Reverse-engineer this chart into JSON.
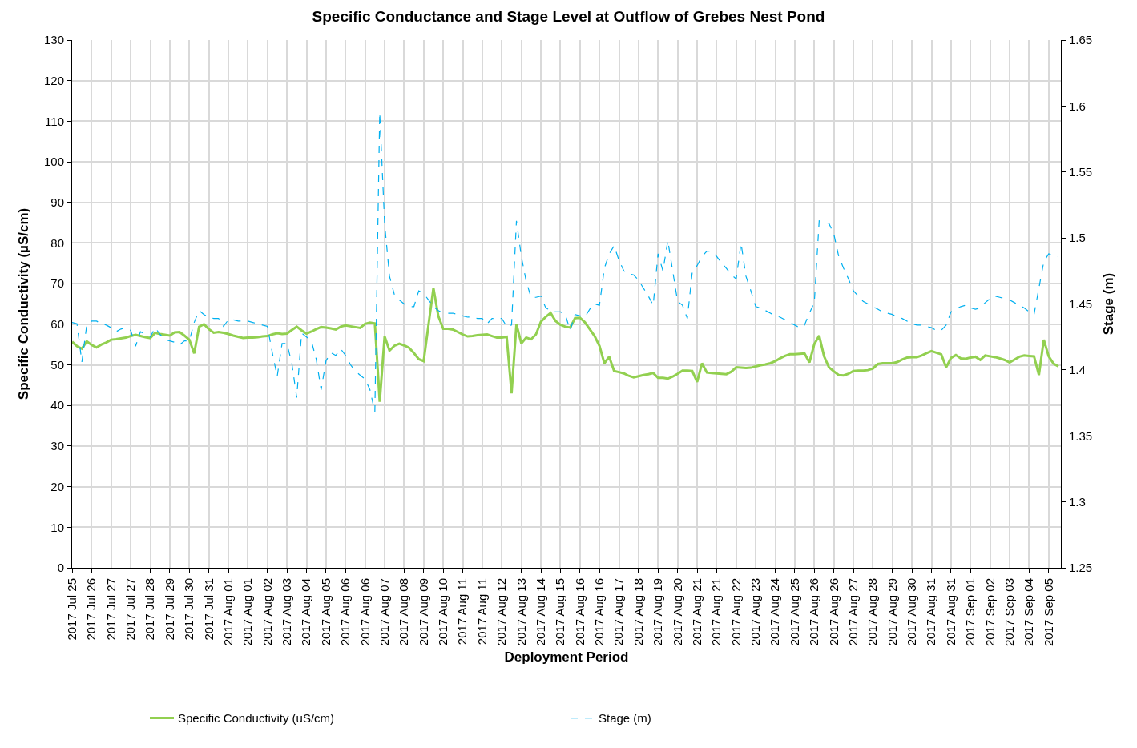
{
  "chart_data": {
    "type": "line",
    "title": "Specific Conductance and Stage Level at Outflow of Grebes Nest Pond",
    "xlabel": "Deployment Period",
    "ylabel": "Specific Conductivity (µS/cm)",
    "y2label": "Stage (m)",
    "categories": [
      "2017 Jul 25",
      null,
      null,
      null,
      "2017 Jul 26",
      null,
      null,
      null,
      "2017 Jul 27",
      null,
      null,
      null,
      "2017 Jul 27",
      null,
      null,
      null,
      "2017 Jul 28",
      null,
      null,
      null,
      "2017 Jul 29",
      null,
      null,
      null,
      "2017 Jul 30",
      null,
      null,
      null,
      "2017 Jul 31",
      null,
      null,
      null,
      "2017 Aug 01",
      null,
      null,
      null,
      "2017 Aug 01",
      null,
      null,
      null,
      "2017 Aug 02",
      null,
      null,
      null,
      "2017 Aug 03",
      null,
      null,
      null,
      "2017 Aug 04",
      null,
      null,
      null,
      "2017 Aug 05",
      null,
      null,
      null,
      "2017 Aug 06",
      null,
      null,
      null,
      "2017 Aug 06",
      null,
      null,
      null,
      "2017 Aug 07",
      null,
      null,
      null,
      "2017 Aug 08",
      null,
      null,
      null,
      "2017 Aug 09",
      null,
      null,
      null,
      "2017 Aug 10",
      null,
      null,
      null,
      "2017 Aug 11",
      null,
      null,
      null,
      "2017 Aug 11",
      null,
      null,
      null,
      "2017 Aug 12",
      null,
      null,
      null,
      "2017 Aug 13",
      null,
      null,
      null,
      "2017 Aug 14",
      null,
      null,
      null,
      "2017 Aug 15",
      null,
      null,
      null,
      "2017 Aug 16",
      null,
      null,
      null,
      "2017 Aug 16",
      null,
      null,
      null,
      "2017 Aug 17",
      null,
      null,
      null,
      "2017 Aug 18",
      null,
      null,
      null,
      "2017 Aug 19",
      null,
      null,
      null,
      "2017 Aug 20",
      null,
      null,
      null,
      "2017 Aug 21",
      null,
      null,
      null,
      "2017 Aug 21",
      null,
      null,
      null,
      "2017 Aug 22",
      null,
      null,
      null,
      "2017 Aug 23",
      null,
      null,
      null,
      "2017 Aug 24",
      null,
      null,
      null,
      "2017 Aug 25",
      null,
      null,
      null,
      "2017 Aug 26",
      null,
      null,
      null,
      "2017 Aug 26",
      null,
      null,
      null,
      "2017 Aug 27",
      null,
      null,
      null,
      "2017 Aug 28",
      null,
      null,
      null,
      "2017 Aug 29",
      null,
      null,
      null,
      "2017 Aug 30",
      null,
      null,
      null,
      "2017 Aug 31",
      null,
      null,
      null,
      "2017 Aug 31",
      null,
      null,
      null,
      "2017 Sep 01",
      null,
      null,
      null,
      "2017 Sep 02",
      null,
      null,
      null,
      "2017 Sep 03",
      null,
      null,
      null,
      "2017 Sep 04",
      null,
      null,
      null,
      "2017 Sep 05",
      null,
      null
    ],
    "ylim": [
      0,
      130
    ],
    "yticks": [
      0,
      10,
      20,
      30,
      40,
      50,
      60,
      70,
      80,
      90,
      100,
      110,
      120,
      130
    ],
    "y2lim": [
      1.25,
      1.65
    ],
    "y2ticks": [
      1.25,
      1.3,
      1.35,
      1.4,
      1.45,
      1.5,
      1.55,
      1.6,
      1.65
    ],
    "grid": true,
    "legend": "bottom",
    "marker": "none",
    "series": [
      {
        "name": "Specific Conductivity (uS/cm)",
        "color": "#92d050",
        "line_style": "solid",
        "values": [
          55.7,
          54.6,
          54.0,
          55.8,
          54.9,
          54.3,
          55.0,
          55.5,
          56.2,
          56.3,
          56.5,
          56.7,
          57.1,
          57.4,
          57.1,
          56.8,
          56.6,
          57.9,
          57.6,
          57.4,
          57.2,
          58.0,
          58.1,
          57.2,
          56.2,
          52.8,
          59.4,
          60.0,
          58.8,
          57.9,
          58.1,
          57.9,
          57.6,
          57.2,
          56.9,
          56.6,
          56.7,
          56.7,
          56.8,
          57.0,
          57.1,
          57.5,
          57.8,
          57.6,
          57.7,
          58.6,
          59.4,
          58.5,
          57.7,
          58.2,
          58.8,
          59.3,
          59.2,
          59.0,
          58.7,
          59.4,
          59.7,
          59.5,
          59.3,
          59.1,
          60.1,
          60.4,
          60.2,
          40.9,
          57.0,
          53.5,
          54.7,
          55.2,
          54.8,
          54.2,
          52.9,
          51.4,
          50.9,
          60.0,
          68.9,
          62.0,
          58.9,
          58.9,
          58.7,
          58.1,
          57.5,
          57.0,
          57.1,
          57.3,
          57.4,
          57.5,
          57.1,
          56.7,
          56.7,
          56.9,
          43.0,
          60.0,
          55.3,
          56.7,
          56.3,
          57.5,
          60.6,
          61.8,
          62.8,
          60.8,
          59.9,
          59.4,
          59.2,
          61.5,
          61.6,
          60.5,
          58.8,
          57.1,
          54.7,
          50.4,
          52.0,
          48.5,
          48.2,
          47.9,
          47.3,
          46.9,
          47.2,
          47.5,
          47.7,
          48.0,
          46.8,
          46.8,
          46.6,
          47.1,
          47.8,
          48.6,
          48.6,
          48.5,
          45.8,
          50.4,
          48.1,
          48.0,
          47.9,
          47.8,
          47.7,
          48.3,
          49.4,
          49.3,
          49.2,
          49.3,
          49.6,
          49.9,
          50.1,
          50.4,
          50.9,
          51.6,
          52.2,
          52.6,
          52.6,
          52.7,
          52.8,
          50.6,
          55.1,
          57.2,
          52.1,
          49.4,
          48.4,
          47.5,
          47.4,
          47.8,
          48.5,
          48.6,
          48.6,
          48.7,
          49.1,
          50.2,
          50.4,
          50.4,
          50.4,
          50.7,
          51.3,
          51.8,
          51.9,
          51.9,
          52.3,
          52.9,
          53.4,
          53.0,
          52.6,
          49.4,
          51.7,
          52.4,
          51.6,
          51.5,
          51.8,
          52.0,
          51.2,
          52.3,
          52.1,
          51.9,
          51.6,
          51.2,
          50.6,
          51.3,
          52.0,
          52.3,
          52.2,
          52.1,
          47.5,
          56.2,
          52.1,
          50.3,
          49.6
        ]
      },
      {
        "name": "Stage (m)",
        "color": "#00b0f0",
        "line_style": "dashed",
        "axis": "y2",
        "values": [
          1.436,
          1.435,
          1.406,
          1.434,
          1.437,
          1.437,
          1.435,
          1.434,
          1.432,
          1.429,
          1.431,
          1.432,
          1.43,
          1.418,
          1.429,
          1.427,
          1.425,
          1.432,
          1.427,
          1.423,
          1.422,
          1.421,
          1.419,
          1.422,
          1.422,
          1.436,
          1.445,
          1.442,
          1.44,
          1.439,
          1.439,
          1.433,
          1.438,
          1.438,
          1.437,
          1.437,
          1.437,
          1.436,
          1.435,
          1.434,
          1.433,
          1.413,
          1.395,
          1.42,
          1.42,
          1.405,
          1.379,
          1.428,
          1.425,
          1.422,
          1.408,
          1.385,
          1.407,
          1.413,
          1.411,
          1.416,
          1.411,
          1.404,
          1.399,
          1.396,
          1.393,
          1.385,
          1.368,
          1.595,
          1.511,
          1.471,
          1.457,
          1.453,
          1.45,
          1.448,
          1.448,
          1.46,
          1.458,
          1.453,
          1.448,
          1.445,
          1.443,
          1.443,
          1.443,
          1.442,
          1.441,
          1.44,
          1.44,
          1.439,
          1.439,
          1.435,
          1.439,
          1.439,
          1.439,
          1.433,
          1.434,
          1.513,
          1.486,
          1.467,
          1.455,
          1.455,
          1.456,
          1.447,
          1.445,
          1.444,
          1.444,
          1.442,
          1.43,
          1.442,
          1.441,
          1.44,
          1.446,
          1.45,
          1.449,
          1.477,
          1.488,
          1.494,
          1.483,
          1.475,
          1.473,
          1.472,
          1.468,
          1.462,
          1.456,
          1.449,
          1.488,
          1.475,
          1.498,
          1.475,
          1.452,
          1.449,
          1.439,
          1.474,
          1.479,
          1.486,
          1.49,
          1.49,
          1.486,
          1.481,
          1.477,
          1.472,
          1.469,
          1.496,
          1.471,
          1.46,
          1.448,
          1.447,
          1.445,
          1.443,
          1.441,
          1.44,
          1.438,
          1.436,
          1.434,
          1.432,
          1.434,
          1.443,
          1.451,
          1.513,
          1.512,
          1.511,
          1.503,
          1.486,
          1.477,
          1.469,
          1.46,
          1.456,
          1.452,
          1.45,
          1.448,
          1.446,
          1.444,
          1.443,
          1.442,
          1.44,
          1.439,
          1.437,
          1.435,
          1.434,
          1.434,
          1.433,
          1.432,
          1.43,
          1.43,
          1.434,
          1.444,
          1.446,
          1.448,
          1.449,
          1.447,
          1.446,
          1.447,
          1.451,
          1.454,
          1.456,
          1.455,
          1.454,
          1.453,
          1.451,
          1.449,
          1.447,
          1.444,
          1.442,
          1.462,
          1.482,
          1.488,
          1.487,
          1.486
        ]
      }
    ]
  }
}
